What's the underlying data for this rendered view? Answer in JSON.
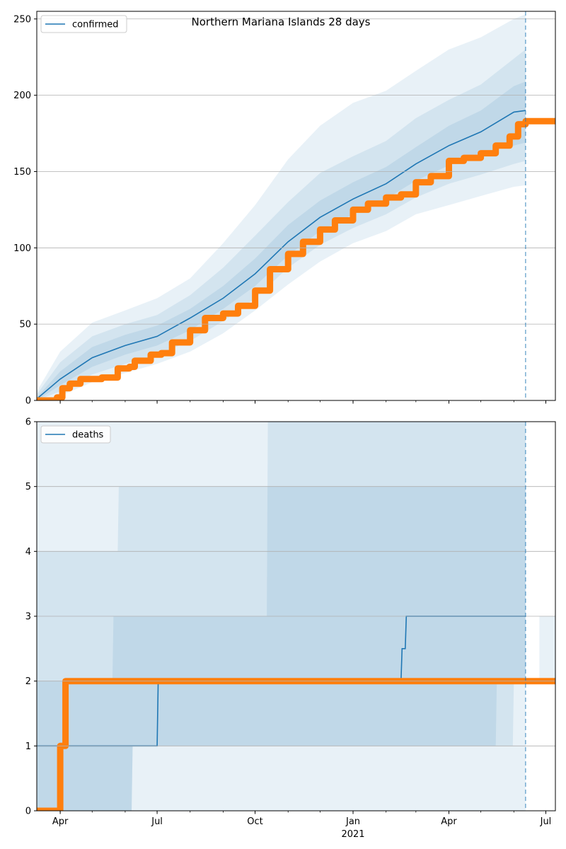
{
  "chart_data": [
    {
      "type": "line",
      "title": "Northern Mariana Islands 28 days",
      "legend": [
        "confirmed"
      ],
      "legend_position": "upper-left",
      "xlabel": "",
      "ylabel": "",
      "x_range": [
        "2020-03-10",
        "2021-07-10"
      ],
      "xticks": [
        {
          "date": "2020-04-01",
          "label": "Apr"
        },
        {
          "date": "2020-07-01",
          "label": "Jul"
        },
        {
          "date": "2020-10-01",
          "label": "Oct"
        },
        {
          "date": "2021-01-01",
          "label": "Jan"
        },
        {
          "date": "2021-04-01",
          "label": "Apr"
        },
        {
          "date": "2021-07-01",
          "label": "Jul"
        }
      ],
      "year_label": "2021",
      "ylim": [
        0,
        255
      ],
      "yticks": [
        0,
        50,
        100,
        150,
        200,
        250
      ],
      "grid": "horizontal",
      "forecast_start": "2021-06-12",
      "colors": {
        "line": "#1f77b4",
        "observed": "#ff7f0e",
        "band": "#1f77b4"
      },
      "series": [
        {
          "name": "confirmed",
          "kind": "median",
          "x": [
            "2020-03-10",
            "2020-04-01",
            "2020-05-01",
            "2020-06-01",
            "2020-07-01",
            "2020-08-01",
            "2020-09-01",
            "2020-10-01",
            "2020-11-01",
            "2020-12-01",
            "2021-01-01",
            "2021-02-01",
            "2021-03-01",
            "2021-04-01",
            "2021-05-01",
            "2021-06-01",
            "2021-06-12"
          ],
          "y": [
            1,
            14,
            28,
            36,
            42,
            54,
            67,
            83,
            104,
            120,
            132,
            142,
            155,
            167,
            176,
            189,
            190
          ]
        },
        {
          "name": "observed",
          "kind": "points",
          "x": [
            "2020-03-10",
            "2020-03-29",
            "2020-04-03",
            "2020-04-10",
            "2020-04-20",
            "2020-05-10",
            "2020-05-25",
            "2020-06-05",
            "2020-06-10",
            "2020-06-25",
            "2020-07-05",
            "2020-07-15",
            "2020-08-01",
            "2020-08-15",
            "2020-09-01",
            "2020-09-15",
            "2020-10-01",
            "2020-10-15",
            "2020-11-01",
            "2020-11-15",
            "2020-12-01",
            "2020-12-15",
            "2021-01-01",
            "2021-01-15",
            "2021-02-01",
            "2021-02-15",
            "2021-03-01",
            "2021-03-15",
            "2021-04-01",
            "2021-04-15",
            "2021-05-01",
            "2021-05-15",
            "2021-05-28",
            "2021-06-05",
            "2021-06-12",
            "2021-07-10"
          ],
          "y": [
            0,
            2,
            8,
            11,
            14,
            15,
            21,
            22,
            26,
            30,
            31,
            38,
            46,
            54,
            57,
            62,
            72,
            86,
            96,
            104,
            112,
            118,
            125,
            129,
            133,
            135,
            143,
            147,
            157,
            159,
            162,
            167,
            173,
            181,
            183,
            183
          ]
        }
      ],
      "bands": [
        {
          "x": [
            "2020-03-10",
            "2020-04-01",
            "2020-05-01",
            "2020-06-01",
            "2020-07-01",
            "2020-08-01",
            "2020-09-01",
            "2020-10-01",
            "2020-11-01",
            "2020-12-01",
            "2021-01-01",
            "2021-02-01",
            "2021-03-01",
            "2021-04-01",
            "2021-05-01",
            "2021-06-01",
            "2021-06-12"
          ],
          "lower": [
            0,
            3,
            12,
            18,
            24,
            32,
            44,
            59,
            76,
            91,
            103,
            111,
            122,
            128,
            134,
            140,
            141
          ],
          "upper": [
            6,
            32,
            51,
            59,
            67,
            80,
            103,
            128,
            158,
            180,
            195,
            203,
            216,
            230,
            238,
            250,
            253
          ]
        },
        {
          "x": [
            "2020-03-10",
            "2020-04-01",
            "2020-05-01",
            "2020-06-01",
            "2020-07-01",
            "2020-08-01",
            "2020-09-01",
            "2020-10-01",
            "2020-11-01",
            "2020-12-01",
            "2021-01-01",
            "2021-02-01",
            "2021-03-01",
            "2021-04-01",
            "2021-05-01",
            "2021-06-01",
            "2021-06-12"
          ],
          "lower": [
            0,
            6,
            17,
            24,
            30,
            39,
            52,
            67,
            87,
            102,
            113,
            122,
            133,
            142,
            148,
            155,
            157
          ],
          "upper": [
            4,
            25,
            42,
            50,
            56,
            69,
            87,
            108,
            130,
            149,
            160,
            170,
            185,
            197,
            207,
            224,
            230
          ]
        },
        {
          "x": [
            "2020-03-10",
            "2020-04-01",
            "2020-05-01",
            "2020-06-01",
            "2020-07-01",
            "2020-08-01",
            "2020-09-01",
            "2020-10-01",
            "2020-11-01",
            "2020-12-01",
            "2021-01-01",
            "2021-02-01",
            "2021-03-01",
            "2021-04-01",
            "2021-05-01",
            "2021-06-01",
            "2021-06-12"
          ],
          "lower": [
            0,
            10,
            22,
            30,
            36,
            46,
            60,
            75,
            95,
            111,
            122,
            132,
            144,
            154,
            162,
            167,
            169
          ],
          "upper": [
            2,
            19,
            35,
            43,
            49,
            60,
            75,
            93,
            115,
            131,
            143,
            153,
            166,
            180,
            190,
            206,
            209
          ]
        }
      ]
    },
    {
      "type": "line",
      "title": "",
      "legend": [
        "deaths"
      ],
      "legend_position": "upper-left",
      "xlabel": "",
      "ylabel": "",
      "x_range": [
        "2020-03-10",
        "2021-07-10"
      ],
      "xticks": [
        {
          "date": "2020-04-01",
          "label": "Apr"
        },
        {
          "date": "2020-07-01",
          "label": "Jul"
        },
        {
          "date": "2020-10-01",
          "label": "Oct"
        },
        {
          "date": "2021-01-01",
          "label": "Jan"
        },
        {
          "date": "2021-04-01",
          "label": "Apr"
        },
        {
          "date": "2021-07-01",
          "label": "Jul"
        }
      ],
      "year_label": "2021",
      "ylim": [
        0,
        6
      ],
      "yticks": [
        0,
        1,
        2,
        3,
        4,
        5,
        6
      ],
      "grid": "horizontal",
      "forecast_start": "2021-06-12",
      "colors": {
        "line": "#1f77b4",
        "observed": "#ff7f0e",
        "band": "#1f77b4"
      },
      "series": [
        {
          "name": "deaths",
          "kind": "median",
          "x": [
            "2020-03-10",
            "2020-07-01",
            "2020-07-02",
            "2021-02-15",
            "2021-02-16",
            "2021-02-19",
            "2021-02-20",
            "2021-06-12"
          ],
          "y": [
            1,
            1,
            2,
            2,
            2.5,
            2.5,
            3,
            3
          ]
        },
        {
          "name": "observed",
          "kind": "points",
          "x": [
            "2020-03-10",
            "2020-03-31",
            "2020-04-01",
            "2020-04-05",
            "2020-04-06",
            "2021-07-10"
          ],
          "y": [
            0,
            0,
            1,
            1,
            2,
            2
          ]
        }
      ],
      "bands": [
        {
          "x": [
            "2020-03-10",
            "2021-02-25",
            "2021-02-26",
            "2021-06-12"
          ],
          "lower": [
            0,
            0,
            0,
            0
          ],
          "upper": [
            6,
            6,
            6,
            6
          ]
        },
        {
          "x": [
            "2020-03-10",
            "2020-05-25",
            "2020-05-26",
            "2020-06-07",
            "2020-06-08",
            "2021-05-31",
            "2021-06-01",
            "2021-06-12"
          ],
          "lower": [
            0,
            0,
            0,
            0,
            1,
            1,
            2,
            2
          ],
          "upper": [
            4,
            4,
            5,
            5,
            5,
            5,
            5,
            5
          ]
        },
        {
          "x": [
            "2020-03-10",
            "2020-05-20",
            "2020-05-21",
            "2020-06-07",
            "2020-06-08",
            "2020-10-12",
            "2020-10-13",
            "2021-05-15",
            "2021-05-16",
            "2021-06-12"
          ],
          "lower": [
            0,
            0,
            0,
            0,
            1,
            1,
            1,
            1,
            2,
            2
          ],
          "upper": [
            2,
            2,
            3,
            3,
            3,
            3,
            6,
            6,
            6,
            6
          ]
        },
        {
          "x": [
            "2021-06-25",
            "2021-07-10"
          ],
          "lower": [
            2,
            2
          ],
          "upper": [
            3,
            3
          ]
        }
      ]
    }
  ]
}
